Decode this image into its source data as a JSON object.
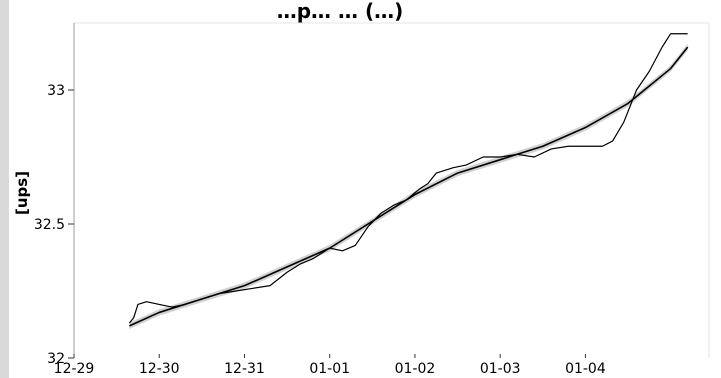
{
  "chart_data": {
    "type": "line",
    "title": "…p… … (…)",
    "xlabel": "",
    "ylabel": "[ups]",
    "x_tick_labels": [
      "12-29",
      "12-30",
      "12-31",
      "01-01",
      "01-02",
      "01-03",
      "01-04"
    ],
    "y_tick_labels": [
      "32",
      "32.5",
      "33"
    ],
    "ylim": [
      32.0,
      33.25
    ],
    "xlim": [
      0,
      7.45
    ],
    "grid": false,
    "legend": "none",
    "series": [
      {
        "role": "observed",
        "color": "#000000",
        "x": [
          0.65,
          0.7,
          0.75,
          0.85,
          1.0,
          1.15,
          1.3,
          1.5,
          1.7,
          1.9,
          2.1,
          2.3,
          2.5,
          2.65,
          2.8,
          3.0,
          3.15,
          3.3,
          3.45,
          3.6,
          3.75,
          3.9,
          4.05,
          4.15,
          4.25,
          4.45,
          4.6,
          4.8,
          5.0,
          5.2,
          5.4,
          5.6,
          5.8,
          6.0,
          6.2,
          6.32,
          6.45,
          6.6,
          6.75,
          6.9,
          7.0,
          7.2
        ],
        "values": [
          32.13,
          32.15,
          32.2,
          32.21,
          32.2,
          32.19,
          32.2,
          32.22,
          32.24,
          32.25,
          32.26,
          32.27,
          32.32,
          32.35,
          32.37,
          32.41,
          32.4,
          32.42,
          32.49,
          32.54,
          32.57,
          32.59,
          32.63,
          32.65,
          32.69,
          32.71,
          32.72,
          32.75,
          32.75,
          32.76,
          32.75,
          32.78,
          32.79,
          32.79,
          32.79,
          32.81,
          32.88,
          33.0,
          33.07,
          33.16,
          33.21,
          33.21
        ]
      },
      {
        "role": "smoothed-fit",
        "color": "#000000",
        "band_color": "#bdbdbd",
        "x": [
          0.65,
          1.0,
          1.5,
          2.0,
          2.5,
          3.0,
          3.5,
          4.0,
          4.5,
          5.0,
          5.5,
          6.0,
          6.5,
          7.0,
          7.2
        ],
        "values": [
          32.12,
          32.17,
          32.22,
          32.27,
          32.34,
          32.41,
          32.51,
          32.61,
          32.69,
          32.74,
          32.79,
          32.86,
          32.95,
          33.08,
          33.16
        ]
      }
    ]
  }
}
